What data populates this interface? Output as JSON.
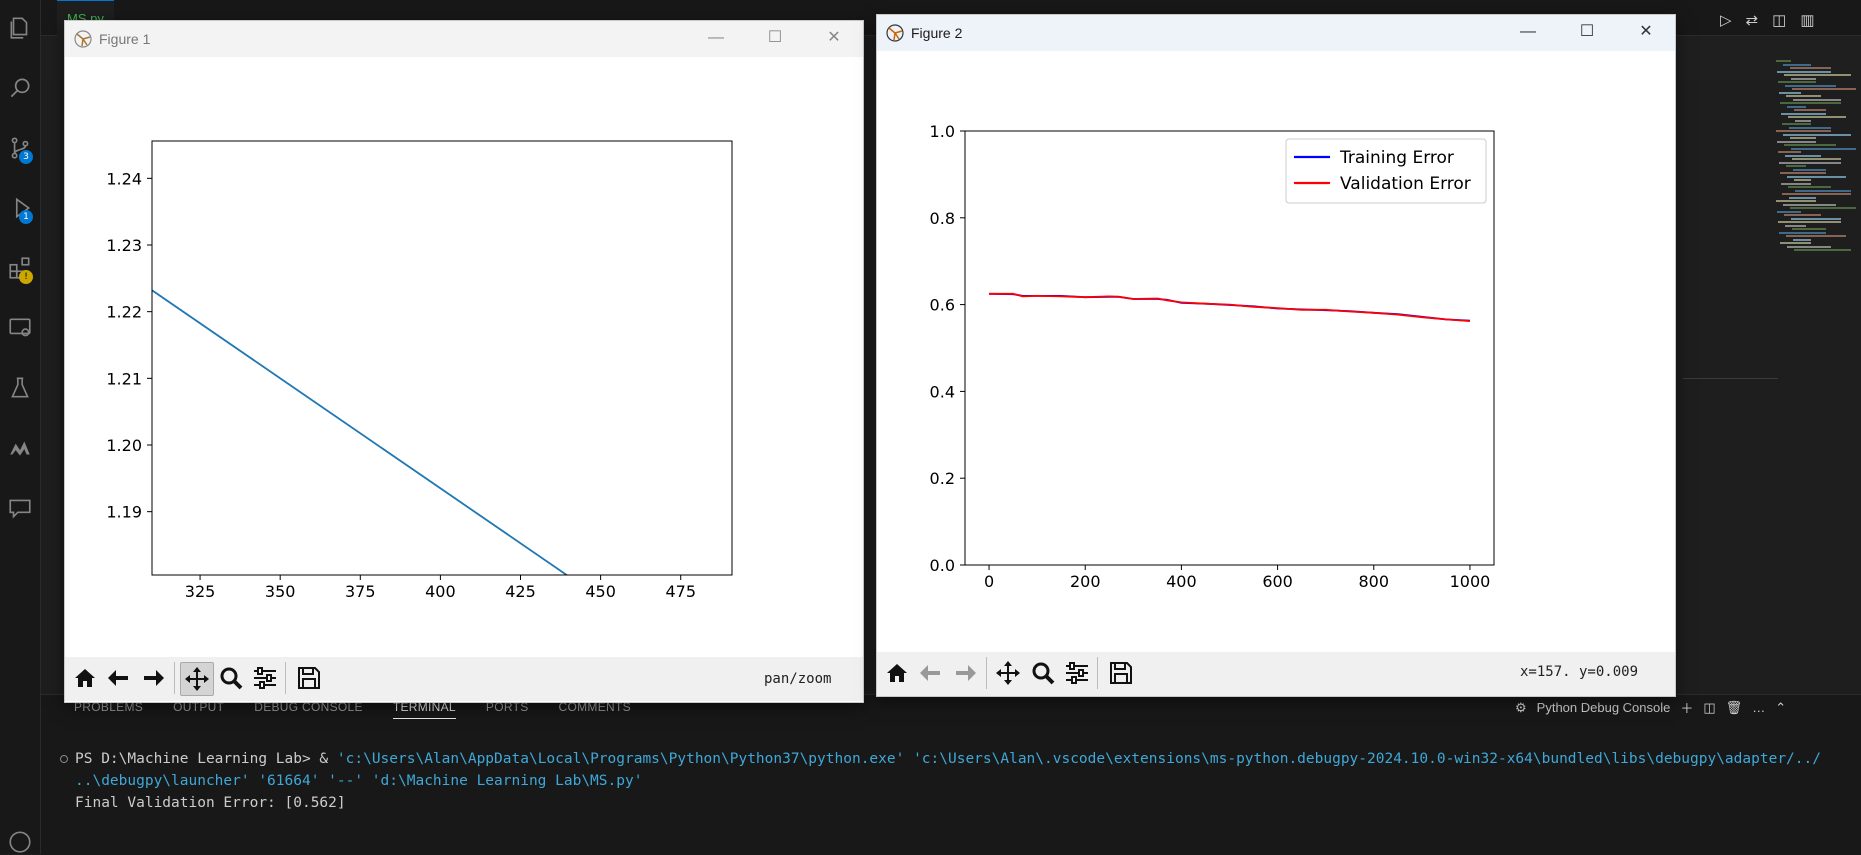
{
  "vscode": {
    "tab_label": "MS.py",
    "source_control_badge": "3",
    "debug_badge": "1",
    "extensions_badge": "!",
    "panel_tabs": [
      "PROBLEMS",
      "OUTPUT",
      "DEBUG CONSOLE",
      "TERMINAL",
      "PORTS",
      "COMMENTS"
    ],
    "active_panel_tab": "TERMINAL",
    "debug_console_label": "Python Debug Console",
    "terminal": {
      "prompt": "PS D:\\Machine Learning Lab>",
      "command_prefix": " & ",
      "command_line1": "'c:\\Users\\Alan\\AppData\\Local\\Programs\\Python\\Python37\\python.exe' 'c:\\Users\\Alan\\.vscode\\extensions\\ms-python.debugpy-2024.10.0-win32-x64\\bundled\\libs\\debugpy\\adapter/../",
      "command_line2": "..\\debugpy\\launcher' '61664' '--' 'd:\\Machine Learning Lab\\MS.py'",
      "output": "Final Validation Error: [0.562]"
    }
  },
  "figure1": {
    "title": "Figure 1",
    "status": "pan/zoom",
    "chart_data": {
      "type": "line",
      "x_ticks": [
        325,
        350,
        375,
        400,
        425,
        450,
        475
      ],
      "y_ticks": [
        1.19,
        1.2,
        1.21,
        1.22,
        1.23,
        1.24
      ],
      "xlim": [
        310,
        491
      ],
      "ylim": [
        1.1805,
        1.2456
      ],
      "color": "#1f77b4",
      "series": [
        {
          "x": [
            310,
            440
          ],
          "y": [
            1.2232,
            1.1803
          ]
        }
      ]
    }
  },
  "figure2": {
    "title": "Figure 2",
    "status": "x=157.  y=0.009",
    "chart_data": {
      "type": "line",
      "x_ticks": [
        0,
        200,
        400,
        600,
        800,
        1000
      ],
      "y_ticks": [
        "0.0",
        "0.2",
        "0.4",
        "0.6",
        "0.8",
        "1.0"
      ],
      "xlim": [
        -50,
        1050
      ],
      "ylim": [
        0,
        1
      ],
      "legend_position": "top-right",
      "series": [
        {
          "name": "Training Error",
          "color": "#0000ff",
          "x": [
            0,
            50,
            70,
            100,
            150,
            200,
            250,
            270,
            300,
            350,
            370,
            400,
            450,
            500,
            550,
            600,
            650,
            700,
            750,
            800,
            850,
            900,
            950,
            1000
          ],
          "y": [
            0.625,
            0.624,
            0.62,
            0.62,
            0.62,
            0.617,
            0.618,
            0.618,
            0.613,
            0.613,
            0.611,
            0.604,
            0.602,
            0.599,
            0.596,
            0.591,
            0.589,
            0.587,
            0.585,
            0.581,
            0.578,
            0.572,
            0.566,
            0.563
          ]
        },
        {
          "name": "Validation Error",
          "color": "#ff0000",
          "x": [
            0,
            50,
            70,
            100,
            150,
            200,
            250,
            270,
            300,
            350,
            370,
            400,
            450,
            500,
            550,
            600,
            650,
            700,
            750,
            800,
            850,
            900,
            950,
            1000
          ],
          "y": [
            0.625,
            0.625,
            0.619,
            0.62,
            0.619,
            0.617,
            0.619,
            0.618,
            0.613,
            0.614,
            0.61,
            0.605,
            0.602,
            0.6,
            0.595,
            0.592,
            0.588,
            0.588,
            0.584,
            0.581,
            0.577,
            0.571,
            0.566,
            0.562
          ]
        }
      ]
    }
  }
}
